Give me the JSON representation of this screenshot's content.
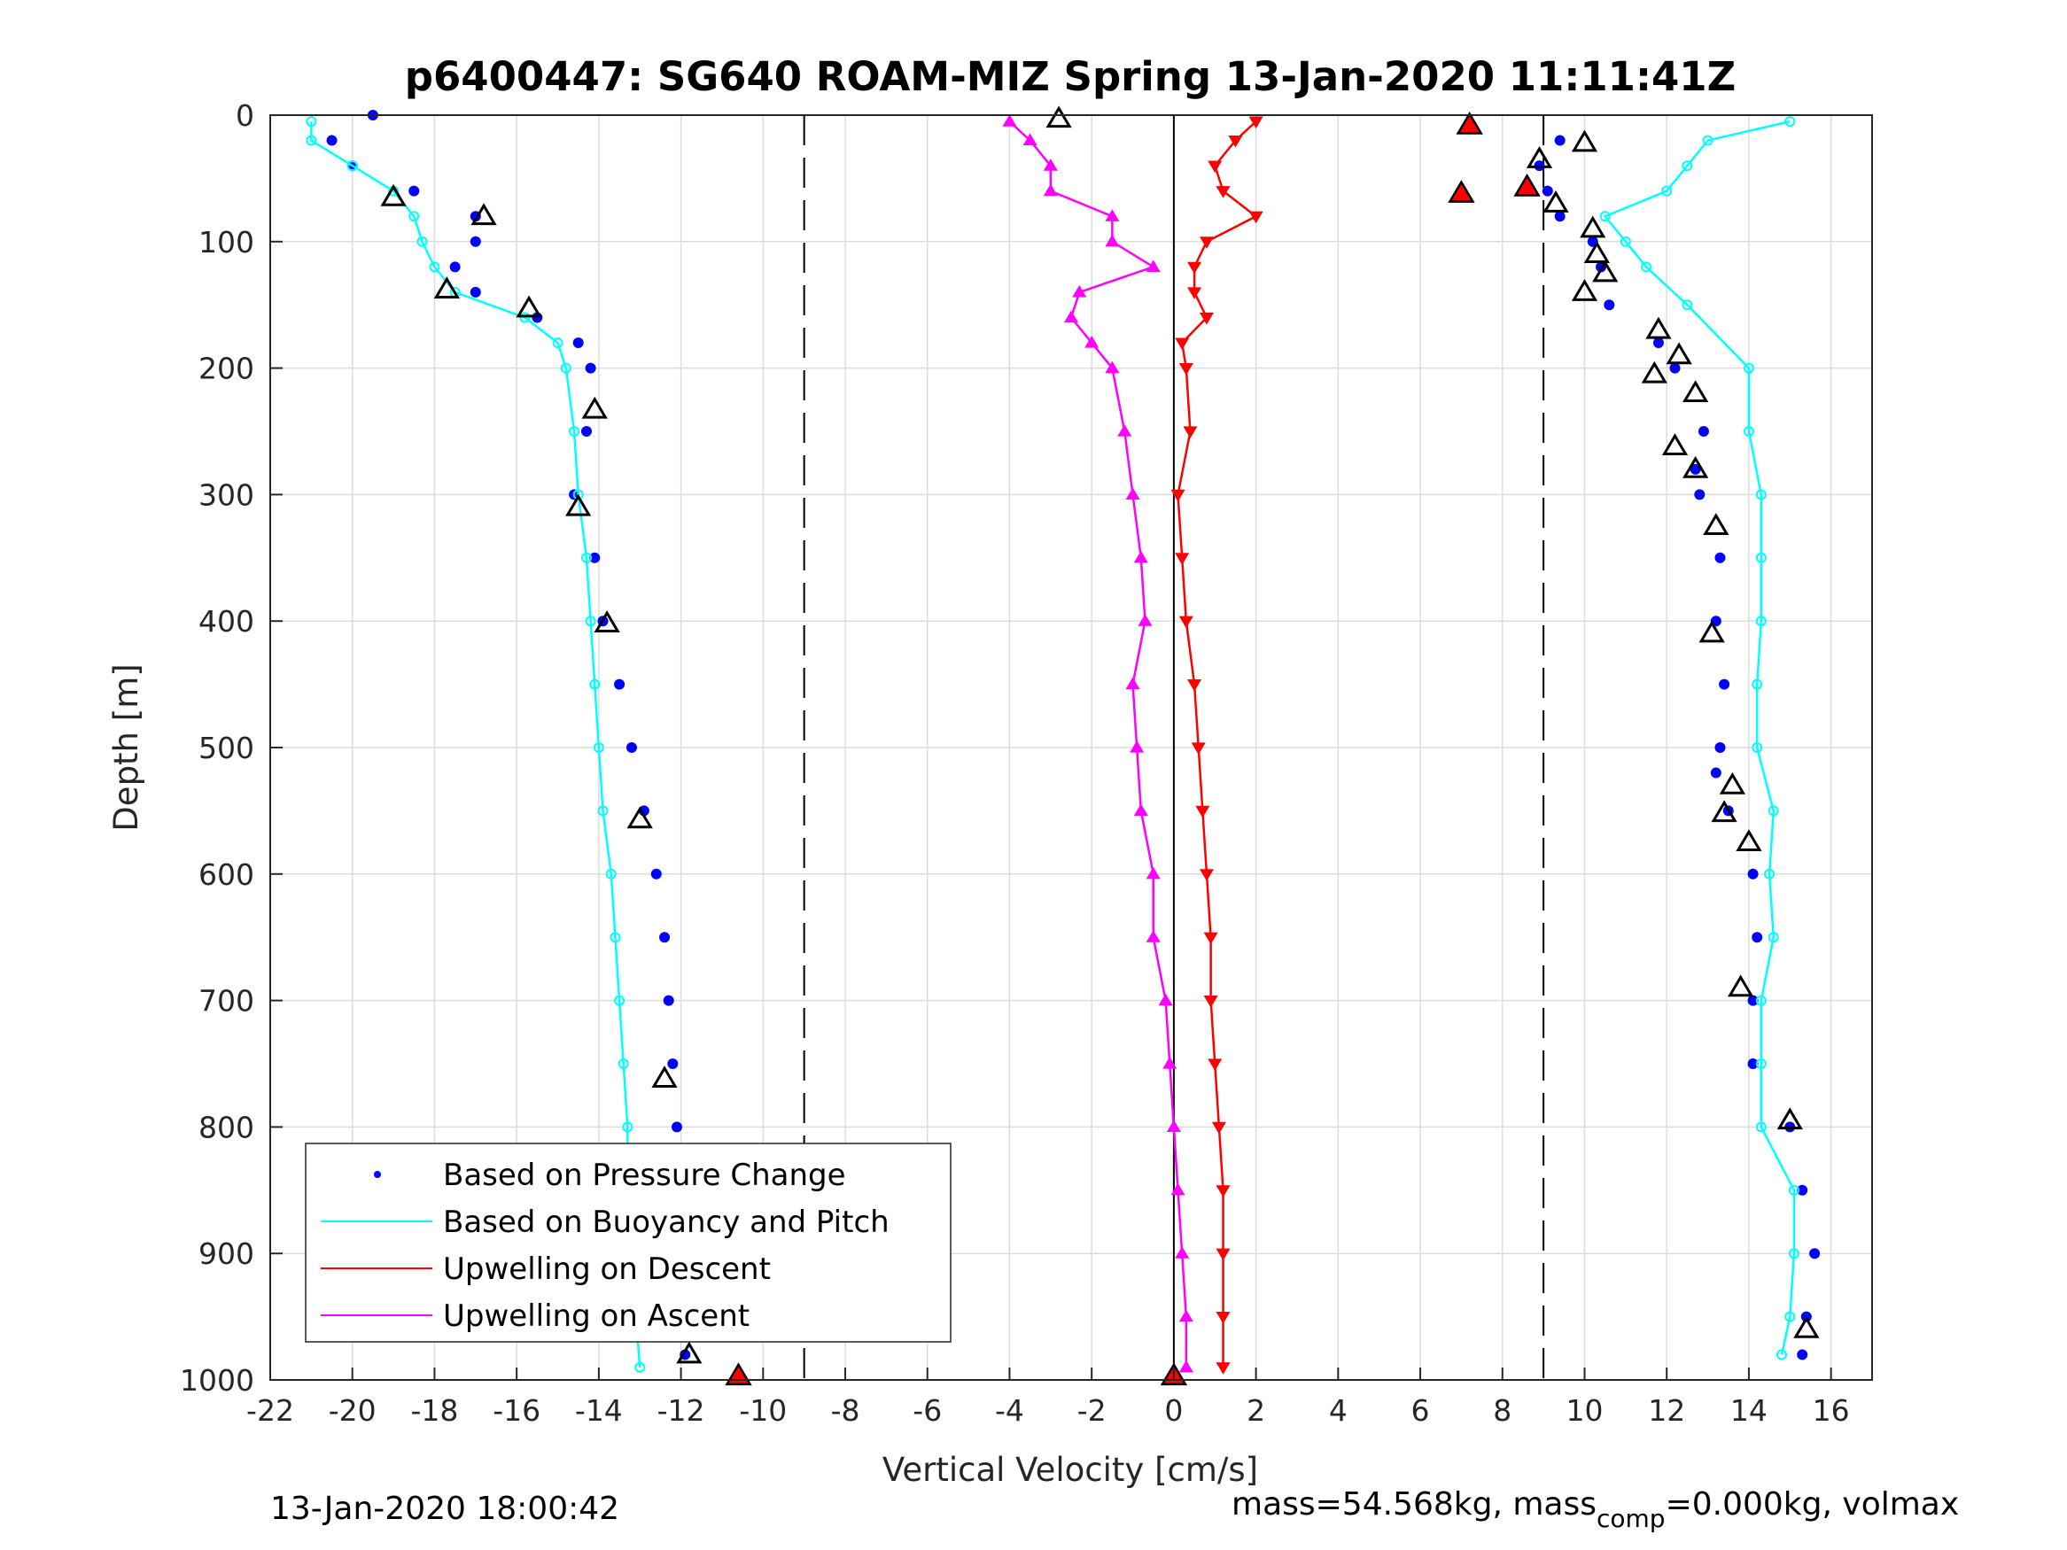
{
  "chart_data": {
    "type": "scatter",
    "title": "p6400447: SG640 ROAM-MIZ Spring 13-Jan-2020 11:11:41Z",
    "xlabel": "Vertical Velocity [cm/s]",
    "ylabel": "Depth [m]",
    "xlim": [
      -22,
      17
    ],
    "ylim": [
      1000,
      0
    ],
    "y_reversed": true,
    "grid": true,
    "xticks": [
      "-22",
      "-20",
      "-18",
      "-16",
      "-14",
      "-12",
      "-10",
      "-8",
      "-6",
      "-4",
      "-2",
      "0",
      "2",
      "4",
      "6",
      "8",
      "10",
      "12",
      "14",
      "16"
    ],
    "yticks": [
      "0",
      "100",
      "200",
      "300",
      "400",
      "500",
      "600",
      "700",
      "800",
      "900",
      "1000"
    ],
    "reference_lines": {
      "dashed_x": [
        -9,
        9
      ],
      "solid_x": [
        0
      ]
    },
    "legend_position": "bottom-left",
    "series": [
      {
        "name": "Based on Pressure Change",
        "color": "#0000ff",
        "marker": "dot",
        "descent": {
          "depth": [
            0,
            20,
            40,
            60,
            80,
            100,
            120,
            140,
            160,
            180,
            200,
            250,
            300,
            350,
            400,
            450,
            500,
            550,
            600,
            650,
            700,
            750,
            800,
            850,
            900,
            950,
            980
          ],
          "velocity": [
            -19.5,
            -20.5,
            -20,
            -18.5,
            -17,
            -17,
            -17.5,
            -17,
            -15.5,
            -14.5,
            -14.2,
            -14.3,
            -14.6,
            -14.1,
            -13.9,
            -13.5,
            -13.2,
            -12.9,
            -12.6,
            -12.4,
            -12.3,
            -12.2,
            -12.1,
            -12,
            -11.9,
            -11.9,
            -11.9
          ]
        },
        "ascent": {
          "depth": [
            980,
            950,
            900,
            850,
            800,
            750,
            700,
            650,
            600,
            550,
            520,
            500,
            450,
            400,
            350,
            300,
            280,
            250,
            200,
            180,
            150,
            120,
            100,
            80,
            60,
            40,
            20
          ],
          "velocity": [
            15.3,
            15.4,
            15.6,
            15.3,
            15,
            14.1,
            14.1,
            14.2,
            14.1,
            13.5,
            13.2,
            13.3,
            13.4,
            13.2,
            13.3,
            12.8,
            12.7,
            12.9,
            12.2,
            11.8,
            10.6,
            10.4,
            10.2,
            9.4,
            9.1,
            8.9,
            9.4
          ]
        }
      },
      {
        "name": "Based on Buoyancy and Pitch",
        "color": "#00ffff",
        "marker": "circle-line",
        "descent": {
          "depth": [
            5,
            20,
            40,
            60,
            80,
            100,
            120,
            140,
            160,
            180,
            200,
            250,
            300,
            350,
            400,
            450,
            500,
            550,
            600,
            650,
            700,
            750,
            800,
            850,
            900,
            950,
            990
          ],
          "velocity": [
            -21,
            -21,
            -20,
            -19,
            -18.5,
            -18.3,
            -18,
            -17.5,
            -15.8,
            -15,
            -14.8,
            -14.6,
            -14.5,
            -14.3,
            -14.2,
            -14.1,
            -14,
            -13.9,
            -13.7,
            -13.6,
            -13.5,
            -13.4,
            -13.3,
            -13.3,
            -13.2,
            -13.1,
            -13
          ]
        },
        "ascent": {
          "depth": [
            980,
            950,
            900,
            850,
            800,
            750,
            700,
            650,
            600,
            550,
            500,
            450,
            400,
            350,
            300,
            250,
            200,
            150,
            120,
            100,
            80,
            60,
            40,
            20,
            5
          ],
          "velocity": [
            14.8,
            15,
            15.1,
            15.1,
            14.3,
            14.3,
            14.3,
            14.6,
            14.5,
            14.6,
            14.2,
            14.2,
            14.3,
            14.3,
            14.3,
            14,
            14,
            12.5,
            11.5,
            11,
            10.5,
            12,
            12.5,
            13,
            15
          ]
        }
      },
      {
        "name": "Upwelling on Descent",
        "color": "#ff0000",
        "marker": "triangle-down",
        "depth": [
          5,
          20,
          40,
          60,
          80,
          100,
          120,
          140,
          160,
          180,
          200,
          250,
          300,
          350,
          400,
          450,
          500,
          550,
          600,
          650,
          700,
          750,
          800,
          850,
          900,
          950,
          990
        ],
        "velocity": [
          2,
          1.5,
          1,
          1.2,
          2,
          0.8,
          0.5,
          0.5,
          0.8,
          0.2,
          0.3,
          0.4,
          0.1,
          0.2,
          0.3,
          0.5,
          0.6,
          0.7,
          0.8,
          0.9,
          0.9,
          1,
          1.1,
          1.2,
          1.2,
          1.2,
          1.2
        ]
      },
      {
        "name": "Upwelling on Ascent",
        "color": "#ff00ff",
        "marker": "triangle-up",
        "depth": [
          5,
          20,
          40,
          60,
          80,
          100,
          120,
          140,
          160,
          180,
          200,
          250,
          300,
          350,
          400,
          450,
          500,
          550,
          600,
          650,
          700,
          750,
          800,
          850,
          900,
          950,
          990
        ],
        "velocity": [
          -4,
          -3.5,
          -3,
          -3,
          -1.5,
          -1.5,
          -0.5,
          -2.3,
          -2.5,
          -2,
          -1.5,
          -1.2,
          -1,
          -0.8,
          -0.7,
          -1,
          -0.9,
          -0.8,
          -0.5,
          -0.5,
          -0.2,
          -0.1,
          0,
          0.1,
          0.2,
          0.3,
          0.3
        ]
      }
    ],
    "markers": {
      "black_triangles": [
        {
          "x": -19,
          "y": 65
        },
        {
          "x": -16.8,
          "y": 80
        },
        {
          "x": -17.7,
          "y": 138
        },
        {
          "x": -15.7,
          "y": 153
        },
        {
          "x": -14.1,
          "y": 233
        },
        {
          "x": -14.5,
          "y": 310
        },
        {
          "x": -13.8,
          "y": 402
        },
        {
          "x": -13,
          "y": 557
        },
        {
          "x": -12.4,
          "y": 762
        },
        {
          "x": -12.5,
          "y": 860
        },
        {
          "x": -11.8,
          "y": 980
        },
        {
          "x": -2.8,
          "y": 3
        },
        {
          "x": 8.9,
          "y": 35
        },
        {
          "x": 10,
          "y": 22
        },
        {
          "x": 9.3,
          "y": 70
        },
        {
          "x": 10.2,
          "y": 90
        },
        {
          "x": 10.3,
          "y": 110
        },
        {
          "x": 10.5,
          "y": 125
        },
        {
          "x": 10,
          "y": 140
        },
        {
          "x": 11.8,
          "y": 170
        },
        {
          "x": 12.3,
          "y": 190
        },
        {
          "x": 11.7,
          "y": 205
        },
        {
          "x": 12.7,
          "y": 220
        },
        {
          "x": 12.2,
          "y": 262
        },
        {
          "x": 12.7,
          "y": 280
        },
        {
          "x": 13.2,
          "y": 325
        },
        {
          "x": 13.1,
          "y": 410
        },
        {
          "x": 13.6,
          "y": 530
        },
        {
          "x": 13.4,
          "y": 552
        },
        {
          "x": 14,
          "y": 575
        },
        {
          "x": 13.8,
          "y": 690
        },
        {
          "x": 15,
          "y": 795
        },
        {
          "x": 15.4,
          "y": 960
        }
      ],
      "red_triangles": [
        {
          "x": 7.2,
          "y": 8
        },
        {
          "x": 7,
          "y": 62
        },
        {
          "x": 8.6,
          "y": 57
        },
        {
          "x": -10.6,
          "y": 997
        },
        {
          "x": 0,
          "y": 997
        }
      ]
    }
  },
  "footer": {
    "left": "13-Jan-2020 18:00:42",
    "right_prefix": "mass=54.568kg, mass",
    "right_sub": "comp",
    "right_suffix": "=0.000kg, volmax"
  }
}
